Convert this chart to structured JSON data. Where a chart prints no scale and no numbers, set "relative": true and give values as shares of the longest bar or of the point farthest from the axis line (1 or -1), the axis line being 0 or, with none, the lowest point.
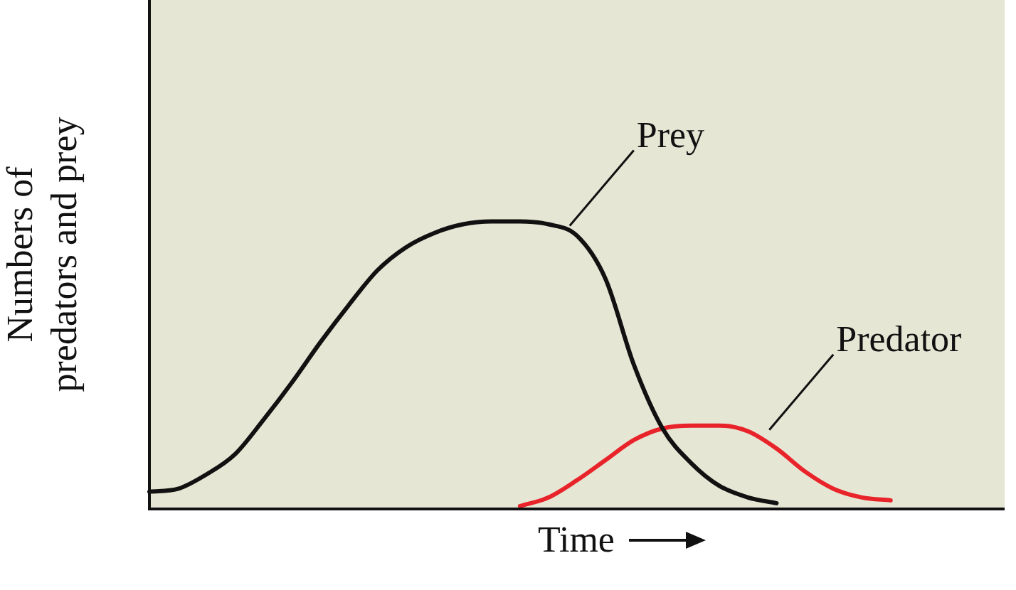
{
  "chart_data": {
    "type": "line",
    "relative": true,
    "xlabel": "Time",
    "ylabel": "Numbers of predators and prey",
    "categories": [
      null,
      null,
      null,
      null,
      null,
      null,
      null,
      null,
      null,
      null,
      null,
      null,
      null,
      null,
      null,
      null,
      null,
      null,
      null,
      null,
      null,
      null,
      null,
      null,
      null,
      null,
      null,
      null,
      null,
      null,
      null
    ],
    "series": [
      {
        "name": "Prey",
        "color": "#111111",
        "values": [
          0.06,
          0.07,
          0.12,
          0.19,
          0.31,
          0.44,
          0.58,
          0.71,
          0.83,
          0.91,
          0.96,
          0.99,
          1.0,
          1.0,
          0.99,
          0.95,
          0.8,
          0.5,
          0.28,
          0.16,
          0.08,
          0.04,
          0.02,
          null,
          null,
          null,
          null,
          null,
          null,
          null,
          null
        ]
      },
      {
        "name": "Predator",
        "color": "#e8242a",
        "values": [
          null,
          null,
          null,
          null,
          null,
          null,
          null,
          null,
          null,
          null,
          null,
          null,
          null,
          0.01,
          0.04,
          0.1,
          0.17,
          0.24,
          0.28,
          0.29,
          0.29,
          0.27,
          0.21,
          0.13,
          0.07,
          0.04,
          0.03,
          null,
          null,
          null,
          null
        ]
      }
    ],
    "grid": false,
    "legend": false,
    "marker": "none",
    "line_style": "solid"
  }
}
